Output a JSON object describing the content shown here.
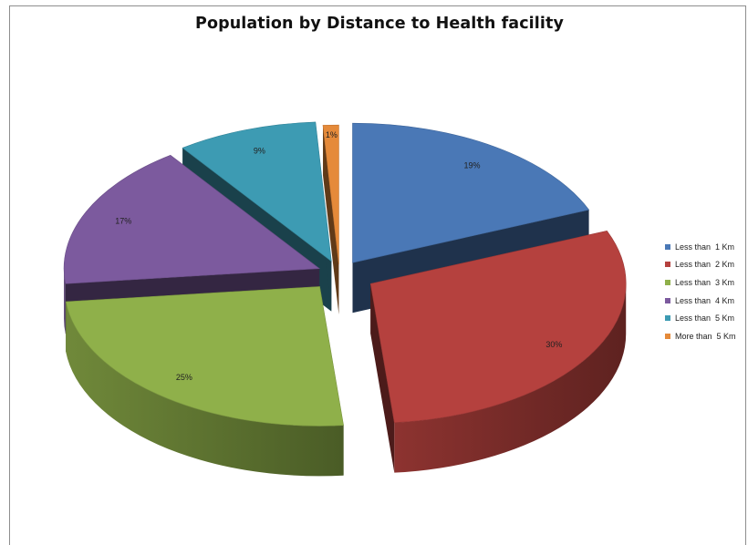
{
  "chart_data": {
    "type": "pie",
    "title": "Population by Distance to Health facility",
    "is_3d": true,
    "exploded": true,
    "legend_position": "right",
    "categories": [
      "Less than  1 Km",
      "Less than  2 Km",
      "Less than  3 Km",
      "Less than  4 Km",
      "Less than  5 Km",
      "More than  5 Km"
    ],
    "values": [
      19,
      30,
      25,
      17,
      9,
      1
    ],
    "labels": [
      "19%",
      "30%",
      "25%",
      "17%",
      "9%",
      "1%"
    ],
    "colors": [
      "#4a78b6",
      "#b5413e",
      "#8fb04a",
      "#7c5a9e",
      "#3d9bb3",
      "#e58a3a"
    ]
  }
}
